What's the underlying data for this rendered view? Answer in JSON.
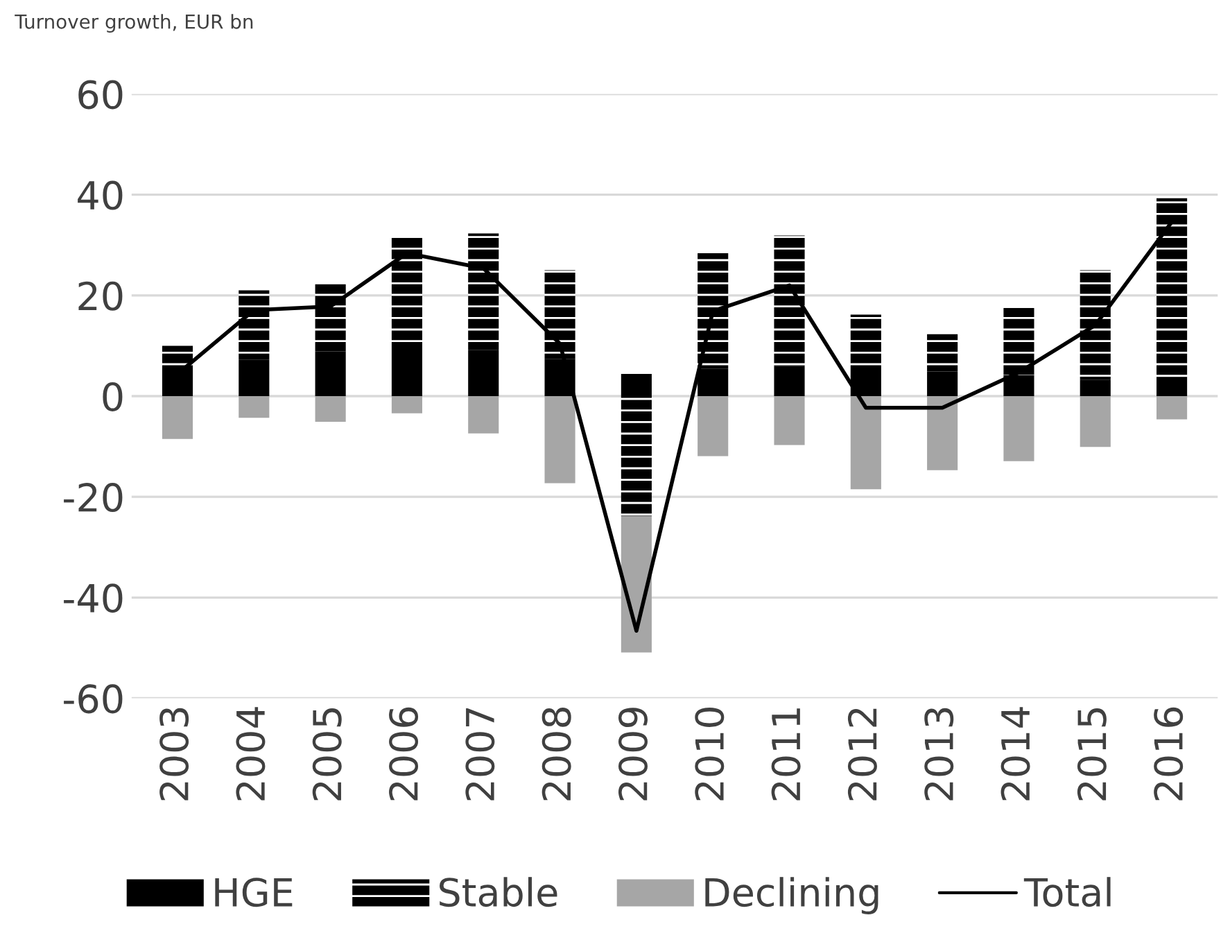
{
  "chart_data": {
    "type": "bar",
    "title": "Turnover growth, EUR bn",
    "stacked": true,
    "categories": [
      "2003",
      "2004",
      "2005",
      "2006",
      "2007",
      "2008",
      "2009",
      "2010",
      "2011",
      "2012",
      "2013",
      "2014",
      "2015",
      "2016"
    ],
    "series": [
      {
        "name": "HGE",
        "color": "#000000",
        "values": [
          5.1,
          7.2,
          8.9,
          10.6,
          9.2,
          7.4,
          4.4,
          5.4,
          6.0,
          5.8,
          4.9,
          4.2,
          3.2,
          3.8
        ]
      },
      {
        "name": "Stable",
        "color": "#000000",
        "values": [
          4.9,
          13.8,
          13.4,
          20.9,
          23.1,
          17.6,
          -23.8,
          23.0,
          25.9,
          10.4,
          7.4,
          13.3,
          21.8,
          35.5
        ]
      },
      {
        "name": "Declining",
        "color": "#a6a6a6",
        "values": [
          -8.5,
          -4.3,
          -5.1,
          -3.4,
          -7.4,
          -17.3,
          -27.1,
          -11.9,
          -9.7,
          -18.5,
          -14.7,
          -12.9,
          -10.1,
          -4.6
        ]
      },
      {
        "name": "Total",
        "type": "line",
        "color": "#000000",
        "values": [
          4.4,
          17.1,
          17.8,
          28.4,
          25.4,
          10.4,
          -46.6,
          16.9,
          22.0,
          -2.3,
          -2.3,
          4.7,
          14.1,
          34.6
        ]
      }
    ],
    "ylim": [
      -60,
      60
    ],
    "yticks": [
      -60,
      -40,
      -20,
      0,
      20,
      40,
      60
    ],
    "grid": "y",
    "legend": "bottom"
  }
}
